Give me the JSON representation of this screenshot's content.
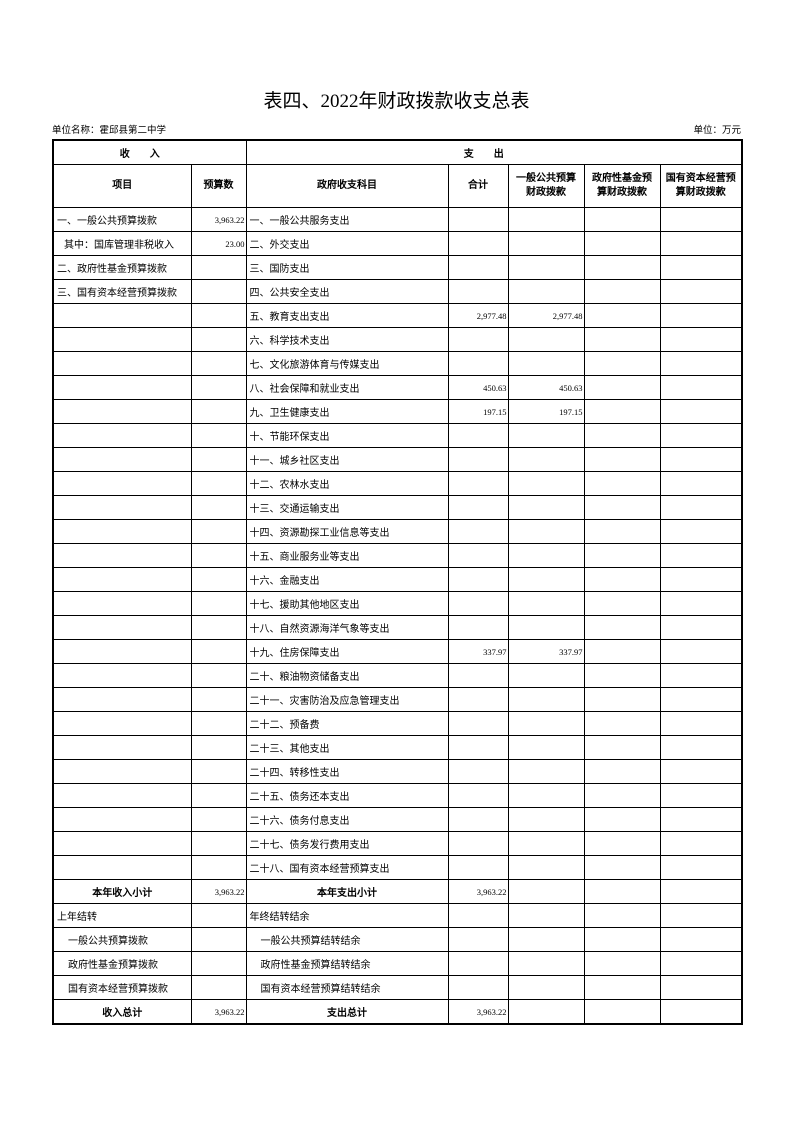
{
  "header": {
    "title": "表四、2022年财政拨款收支总表",
    "unit_name": "单位名称：霍邱县第二中学",
    "unit": "单位：万元"
  },
  "table": {
    "groups": [
      "收入",
      "支出"
    ],
    "columns": [
      "项目",
      "预算数",
      "政府收支科目",
      "合计",
      "一般公共预算财政拨款",
      "政府性基金预算财政拨款",
      "国有资本经营预算财政拨款"
    ],
    "rows": [
      [
        "一、一般公共预算拨款",
        "3,963.22",
        "一、一般公共服务支出",
        null,
        null,
        null,
        null
      ],
      [
        "其中：国库管理非税收入",
        "23.00",
        "二、外交支出",
        null,
        null,
        null,
        null
      ],
      [
        "二、政府性基金预算拨款",
        null,
        "三、国防支出",
        null,
        null,
        null,
        null
      ],
      [
        "三、国有资本经营预算拨款",
        null,
        "四、公共安全支出",
        null,
        null,
        null,
        null
      ],
      [
        null,
        null,
        "五、教育支出支出",
        "2,977.48",
        "2,977.48",
        null,
        null
      ],
      [
        null,
        null,
        "六、科学技术支出",
        null,
        null,
        null,
        null
      ],
      [
        null,
        null,
        "七、文化旅游体育与传媒支出",
        null,
        null,
        null,
        null
      ],
      [
        null,
        null,
        "八、社会保障和就业支出",
        "450.63",
        "450.63",
        null,
        null
      ],
      [
        null,
        null,
        "九、卫生健康支出",
        "197.15",
        "197.15",
        null,
        null
      ],
      [
        null,
        null,
        "十、节能环保支出",
        null,
        null,
        null,
        null
      ],
      [
        null,
        null,
        "十一、城乡社区支出",
        null,
        null,
        null,
        null
      ],
      [
        null,
        null,
        "十二、农林水支出",
        null,
        null,
        null,
        null
      ],
      [
        null,
        null,
        "十三、交通运输支出",
        null,
        null,
        null,
        null
      ],
      [
        null,
        null,
        "十四、资源勘探工业信息等支出",
        null,
        null,
        null,
        null
      ],
      [
        null,
        null,
        "十五、商业服务业等支出",
        null,
        null,
        null,
        null
      ],
      [
        null,
        null,
        "十六、金融支出",
        null,
        null,
        null,
        null
      ],
      [
        null,
        null,
        "十七、援助其他地区支出",
        null,
        null,
        null,
        null
      ],
      [
        null,
        null,
        "十八、自然资源海洋气象等支出",
        null,
        null,
        null,
        null
      ],
      [
        null,
        null,
        "十九、住房保障支出",
        "337.97",
        "337.97",
        null,
        null
      ],
      [
        null,
        null,
        "二十、粮油物资储备支出",
        null,
        null,
        null,
        null
      ],
      [
        null,
        null,
        "二十一、灾害防治及应急管理支出",
        null,
        null,
        null,
        null
      ],
      [
        null,
        null,
        "二十二、预备费",
        null,
        null,
        null,
        null
      ],
      [
        null,
        null,
        "二十三、其他支出",
        null,
        null,
        null,
        null
      ],
      [
        null,
        null,
        "二十四、转移性支出",
        null,
        null,
        null,
        null
      ],
      [
        null,
        null,
        "二十五、债务还本支出",
        null,
        null,
        null,
        null
      ],
      [
        null,
        null,
        "二十六、债务付息支出",
        null,
        null,
        null,
        null
      ],
      [
        null,
        null,
        "二十七、债务发行费用支出",
        null,
        null,
        null,
        null
      ],
      [
        null,
        null,
        "二十八、国有资本经营预算支出",
        null,
        null,
        null,
        null
      ],
      [
        "本年收入小计",
        "3,963.22",
        "本年支出小计",
        "3,963.22",
        null,
        null,
        null
      ],
      [
        "上年结转",
        null,
        "年终结转结余",
        null,
        null,
        null,
        null
      ],
      [
        "一般公共预算拨款",
        null,
        "一般公共预算结转结余",
        null,
        null,
        null,
        null
      ],
      [
        "政府性基金预算拨款",
        null,
        "政府性基金预算结转结余",
        null,
        null,
        null,
        null
      ],
      [
        "国有资本经营预算拨款",
        null,
        "国有资本经营预算结转结余",
        null,
        null,
        null,
        null
      ],
      [
        "收入总计",
        "3,963.22",
        "支出总计",
        "3,963.22",
        null,
        null,
        null
      ]
    ]
  }
}
